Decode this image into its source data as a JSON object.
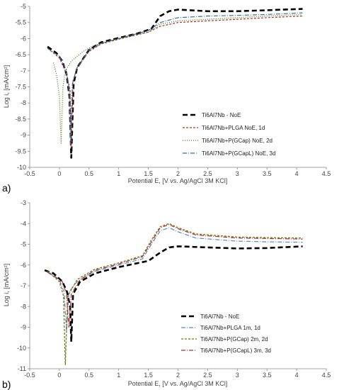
{
  "chart_data": [
    {
      "type": "line",
      "panel_label": "a)",
      "xlabel": "Potential E, [V vs. Ag/AgCl 3M KCl]",
      "ylabel": "Log i, [mA/cm²]",
      "xlim": [
        -0.5,
        4.5
      ],
      "ylim": [
        -10,
        -5
      ],
      "x_ticks": [
        -0.5,
        0,
        0.5,
        1,
        1.5,
        2,
        2.5,
        3,
        3.5,
        4,
        4.5
      ],
      "x_tick_labels": [
        "-0.5",
        "0",
        "0.5",
        "1",
        "1.5",
        "2",
        "2.5",
        "3",
        "3.5",
        "4",
        "4.5"
      ],
      "y_ticks": [
        -5,
        -5.5,
        -6,
        -6.5,
        -7,
        -7.5,
        -8,
        -8.5,
        -9,
        -9.5,
        -10
      ],
      "y_tick_labels": [
        "-5",
        "-5.5",
        "-6",
        "-6.5",
        "-7",
        "-7.5",
        "-8",
        "-8.5",
        "-9",
        "-9.5",
        "-10"
      ],
      "grid": false,
      "legend_position": "lower-right",
      "series": [
        {
          "name": "Ti6Al7Nb - NoE",
          "color": "#000000",
          "dash": "7,4",
          "width": 2.6,
          "points": [
            [
              -0.2,
              -6.25
            ],
            [
              -0.05,
              -6.45
            ],
            [
              0.05,
              -6.7
            ],
            [
              0.12,
              -7.1
            ],
            [
              0.17,
              -7.8
            ],
            [
              0.2,
              -9.7
            ],
            [
              0.24,
              -7.4
            ],
            [
              0.3,
              -6.9
            ],
            [
              0.5,
              -6.35
            ],
            [
              0.7,
              -6.12
            ],
            [
              1.0,
              -5.98
            ],
            [
              1.3,
              -5.85
            ],
            [
              1.55,
              -5.7
            ],
            [
              1.7,
              -5.3
            ],
            [
              1.85,
              -5.15
            ],
            [
              2.0,
              -5.1
            ],
            [
              2.5,
              -5.15
            ],
            [
              3.0,
              -5.15
            ],
            [
              3.5,
              -5.12
            ],
            [
              4.1,
              -5.08
            ]
          ]
        },
        {
          "name": "Ti6Al7Nb+PLGA NoE, 1d",
          "color": "#b03020",
          "dash": "3,2",
          "width": 1.2,
          "points": [
            [
              -0.2,
              -6.3
            ],
            [
              0.0,
              -6.6
            ],
            [
              0.12,
              -7.1
            ],
            [
              0.18,
              -7.6
            ],
            [
              0.2,
              -9.4
            ],
            [
              0.23,
              -7.3
            ],
            [
              0.3,
              -6.9
            ],
            [
              0.5,
              -6.4
            ],
            [
              0.7,
              -6.17
            ],
            [
              1.0,
              -6.02
            ],
            [
              1.5,
              -5.8
            ],
            [
              1.7,
              -5.62
            ],
            [
              2.0,
              -5.5
            ],
            [
              2.5,
              -5.45
            ],
            [
              3.0,
              -5.4
            ],
            [
              3.5,
              -5.35
            ],
            [
              4.1,
              -5.3
            ]
          ]
        },
        {
          "name": "Ti6Al7Nb+P(GCap) NoE, 2d",
          "color": "#4a7a1a",
          "dash": "1,2",
          "width": 1.3,
          "points": [
            [
              -0.1,
              -6.75
            ],
            [
              -0.05,
              -7.1
            ],
            [
              0.0,
              -7.8
            ],
            [
              0.03,
              -9.25
            ],
            [
              0.06,
              -7.5
            ],
            [
              0.1,
              -7.0
            ],
            [
              0.2,
              -6.7
            ],
            [
              0.4,
              -6.4
            ],
            [
              0.6,
              -6.2
            ],
            [
              1.0,
              -6.0
            ],
            [
              1.5,
              -5.8
            ],
            [
              1.7,
              -5.55
            ],
            [
              2.0,
              -5.45
            ],
            [
              2.5,
              -5.4
            ],
            [
              3.0,
              -5.35
            ],
            [
              3.5,
              -5.3
            ],
            [
              4.1,
              -5.25
            ]
          ]
        },
        {
          "name": "Ti6Al7Nb+P(GCapL) NoE, 3d",
          "color": "#3a6ea5",
          "dash": "6,2,1,2",
          "width": 1.2,
          "points": [
            [
              -0.2,
              -6.3
            ],
            [
              0.0,
              -6.55
            ],
            [
              0.12,
              -7.0
            ],
            [
              0.17,
              -7.7
            ],
            [
              0.19,
              -9.3
            ],
            [
              0.22,
              -7.4
            ],
            [
              0.3,
              -6.9
            ],
            [
              0.5,
              -6.35
            ],
            [
              0.7,
              -6.15
            ],
            [
              1.0,
              -6.0
            ],
            [
              1.5,
              -5.75
            ],
            [
              1.7,
              -5.5
            ],
            [
              2.0,
              -5.35
            ],
            [
              2.5,
              -5.3
            ],
            [
              3.0,
              -5.28
            ],
            [
              3.5,
              -5.25
            ],
            [
              4.1,
              -5.2
            ]
          ]
        }
      ]
    },
    {
      "type": "line",
      "panel_label": "b)",
      "xlabel": "Potential E, [V vs. Ag/AgCl 3M KCl]",
      "ylabel": "Log i, [mA/cm²]",
      "xlim": [
        -0.5,
        4.5
      ],
      "ylim": [
        -11,
        -3
      ],
      "x_ticks": [
        -0.5,
        0,
        0.5,
        1,
        1.5,
        2,
        2.5,
        3,
        3.5,
        4,
        4.5
      ],
      "x_tick_labels": [
        "-0.5",
        "0",
        "0.5",
        "1",
        "1.5",
        "2",
        "2.5",
        "3",
        "3.5",
        "4",
        "4.5"
      ],
      "y_ticks": [
        -3,
        -4,
        -5,
        -6,
        -7,
        -8,
        -9,
        -10,
        -11
      ],
      "y_tick_labels": [
        "-3",
        "-4",
        "-5",
        "-6",
        "-7",
        "-8",
        "-9",
        "-10",
        "-11"
      ],
      "grid": false,
      "legend_position": "lower-right",
      "series": [
        {
          "name": "Ti6Al7Nb - NoE",
          "color": "#000000",
          "dash": "7,4",
          "width": 2.6,
          "points": [
            [
              -0.25,
              -6.25
            ],
            [
              -0.1,
              -6.4
            ],
            [
              0.05,
              -6.8
            ],
            [
              0.13,
              -7.3
            ],
            [
              0.18,
              -8.0
            ],
            [
              0.2,
              -9.7
            ],
            [
              0.23,
              -7.4
            ],
            [
              0.35,
              -6.8
            ],
            [
              0.6,
              -6.4
            ],
            [
              1.0,
              -6.1
            ],
            [
              1.5,
              -5.8
            ],
            [
              1.7,
              -5.4
            ],
            [
              1.85,
              -5.15
            ],
            [
              2.0,
              -5.1
            ],
            [
              2.5,
              -5.15
            ],
            [
              3.0,
              -5.2
            ],
            [
              3.5,
              -5.18
            ],
            [
              4.1,
              -5.1
            ]
          ]
        },
        {
          "name": "Ti6Al7Nb+PLGA 1m, 1d",
          "color": "#5a8ac0",
          "dash": "6,2,1,2",
          "width": 1.2,
          "points": [
            [
              -0.2,
              -6.3
            ],
            [
              0.0,
              -6.7
            ],
            [
              0.08,
              -7.3
            ],
            [
              0.12,
              -9.2
            ],
            [
              0.16,
              -7.3
            ],
            [
              0.3,
              -6.8
            ],
            [
              0.6,
              -6.3
            ],
            [
              1.0,
              -6.0
            ],
            [
              1.4,
              -5.7
            ],
            [
              1.55,
              -5.0
            ],
            [
              1.7,
              -4.35
            ],
            [
              1.85,
              -4.2
            ],
            [
              2.0,
              -4.4
            ],
            [
              2.3,
              -4.7
            ],
            [
              3.0,
              -4.85
            ],
            [
              3.5,
              -4.88
            ],
            [
              4.1,
              -4.9
            ]
          ]
        },
        {
          "name": "Ti6Al7Nb+P(GCap) 2m, 2d",
          "color": "#6b7a12",
          "dash": "3,2",
          "width": 1.3,
          "points": [
            [
              -0.2,
              -6.3
            ],
            [
              0.0,
              -6.8
            ],
            [
              0.07,
              -7.5
            ],
            [
              0.1,
              -10.8
            ],
            [
              0.14,
              -7.5
            ],
            [
              0.3,
              -6.7
            ],
            [
              0.6,
              -6.2
            ],
            [
              1.0,
              -5.9
            ],
            [
              1.4,
              -5.55
            ],
            [
              1.55,
              -4.8
            ],
            [
              1.7,
              -4.15
            ],
            [
              1.85,
              -4.0
            ],
            [
              2.0,
              -4.2
            ],
            [
              2.3,
              -4.5
            ],
            [
              3.0,
              -4.65
            ],
            [
              3.5,
              -4.68
            ],
            [
              4.1,
              -4.7
            ]
          ]
        },
        {
          "name": "Ti6Al7Nb+P(GCapL) 3m, 3d",
          "color": "#b03030",
          "dash": "6,2,1,2",
          "width": 1.2,
          "points": [
            [
              -0.2,
              -6.35
            ],
            [
              0.05,
              -6.8
            ],
            [
              0.12,
              -7.4
            ],
            [
              0.16,
              -9.0
            ],
            [
              0.2,
              -7.4
            ],
            [
              0.35,
              -6.7
            ],
            [
              0.6,
              -6.25
            ],
            [
              1.0,
              -5.95
            ],
            [
              1.4,
              -5.6
            ],
            [
              1.55,
              -4.9
            ],
            [
              1.7,
              -4.2
            ],
            [
              1.85,
              -4.05
            ],
            [
              2.0,
              -4.25
            ],
            [
              2.3,
              -4.55
            ],
            [
              3.0,
              -4.7
            ],
            [
              3.5,
              -4.72
            ],
            [
              4.1,
              -4.75
            ]
          ]
        }
      ]
    }
  ]
}
